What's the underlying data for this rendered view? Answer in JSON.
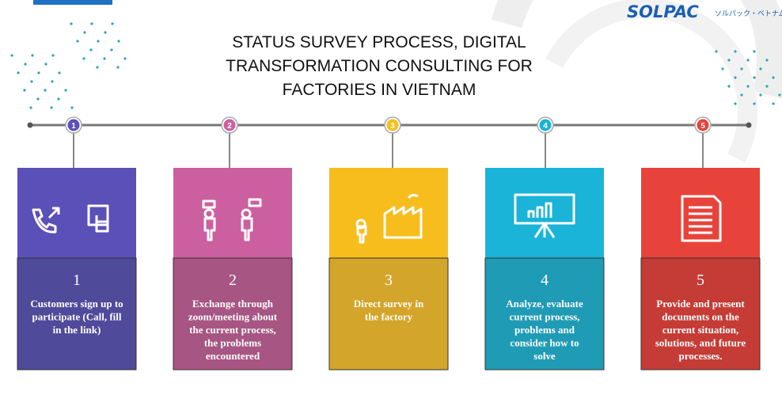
{
  "header": {
    "title_lines": [
      "STATUS SURVEY PROCESS, DIGITAL",
      "TRANSFORMATION CONSULTING FOR",
      "FACTORIES IN VIETNAM"
    ],
    "logo": "SOLPAC",
    "logo_subtitle": "ソルパック・ベトナム"
  },
  "steps": [
    {
      "badge": "1",
      "number": "1",
      "text": [
        "Customers sign up to",
        "participate (Call, fill",
        "in the link)"
      ]
    },
    {
      "badge": "2",
      "number": "2",
      "text": [
        "Exchange through",
        "zoom/meeting about",
        "the current process,",
        "the problems",
        "encountered"
      ]
    },
    {
      "badge": "3",
      "number": "3",
      "text": [
        "Direct survey in",
        "the factory"
      ]
    },
    {
      "badge": "4",
      "number": "4",
      "text": [
        "Analyze, evaluate",
        "current process,",
        "problems and",
        "consider how to",
        "solve"
      ]
    },
    {
      "badge": "5",
      "number": "5",
      "text": [
        "Provide and present",
        "documents on the",
        "current situation,",
        "solutions, and future",
        "processes."
      ]
    }
  ]
}
